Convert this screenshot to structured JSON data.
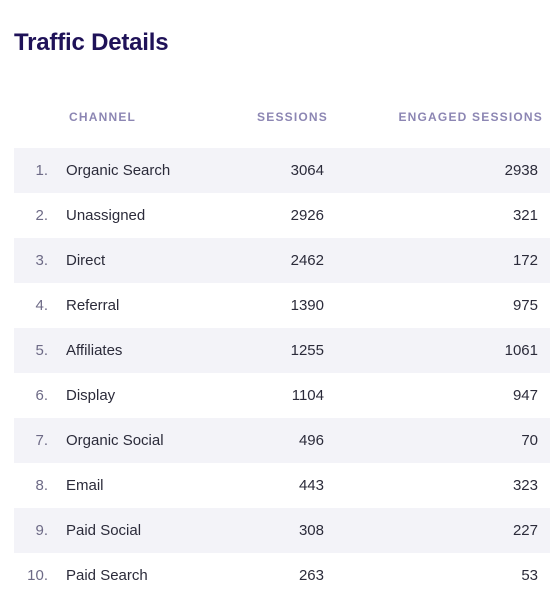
{
  "title": "Traffic Details",
  "columns": {
    "channel": "CHANNEL",
    "sessions": "SESSIONS",
    "engaged_sessions": "ENGAGED SESSIONS"
  },
  "rows": [
    {
      "rank": "1.",
      "channel": "Organic Search",
      "sessions": "3064",
      "engaged": "2938"
    },
    {
      "rank": "2.",
      "channel": "Unassigned",
      "sessions": "2926",
      "engaged": "321"
    },
    {
      "rank": "3.",
      "channel": "Direct",
      "sessions": "2462",
      "engaged": "172"
    },
    {
      "rank": "4.",
      "channel": "Referral",
      "sessions": "1390",
      "engaged": "975"
    },
    {
      "rank": "5.",
      "channel": "Affiliates",
      "sessions": "1255",
      "engaged": "1061"
    },
    {
      "rank": "6.",
      "channel": "Display",
      "sessions": "1104",
      "engaged": "947"
    },
    {
      "rank": "7.",
      "channel": "Organic Social",
      "sessions": "496",
      "engaged": "70"
    },
    {
      "rank": "8.",
      "channel": "Email",
      "sessions": "443",
      "engaged": "323"
    },
    {
      "rank": "9.",
      "channel": "Paid Social",
      "sessions": "308",
      "engaged": "227"
    },
    {
      "rank": "10.",
      "channel": "Paid Search",
      "sessions": "263",
      "engaged": "53"
    }
  ],
  "colors": {
    "title": "#1f1258",
    "header": "#8c86b3",
    "row_shade": "#f3f3f8",
    "text": "#2b2b3a"
  }
}
